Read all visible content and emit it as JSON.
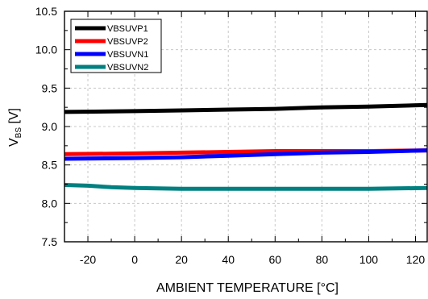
{
  "chart_data": {
    "type": "line",
    "title": "",
    "xlabel": "AMBIENT TEMPERATURE [°C]",
    "ylabel": {
      "main": "V",
      "sub": "BS",
      "unit": " [V]"
    },
    "xlim": [
      -30,
      125
    ],
    "ylim": [
      7.5,
      10.5
    ],
    "x_ticks": [
      -20,
      0,
      20,
      40,
      60,
      80,
      100,
      120
    ],
    "x_tick_labels": [
      "-20",
      "0",
      "20",
      "40",
      "60",
      "80",
      "100",
      "120"
    ],
    "y_ticks": [
      7.5,
      8.0,
      8.5,
      9.0,
      9.5,
      10.0,
      10.5
    ],
    "y_tick_labels": [
      "7.5",
      "8.0",
      "8.5",
      "9.0",
      "9.5",
      "10.0",
      "10.5"
    ],
    "grid": true,
    "legend_position": "top-left",
    "series": [
      {
        "name": "VBSUVP1",
        "color": "#000000",
        "x": [
          -30,
          0,
          20,
          40,
          60,
          80,
          100,
          125
        ],
        "y": [
          9.19,
          9.2,
          9.21,
          9.22,
          9.23,
          9.25,
          9.26,
          9.28
        ]
      },
      {
        "name": "VBSUVP2",
        "color": "#ff0000",
        "x": [
          -30,
          0,
          20,
          40,
          60,
          80,
          100,
          125
        ],
        "y": [
          8.64,
          8.65,
          8.66,
          8.67,
          8.68,
          8.68,
          8.68,
          8.69
        ]
      },
      {
        "name": "VBSUVN1",
        "color": "#0000ff",
        "x": [
          -30,
          0,
          20,
          40,
          60,
          80,
          100,
          125
        ],
        "y": [
          8.58,
          8.59,
          8.6,
          8.62,
          8.64,
          8.66,
          8.67,
          8.69
        ]
      },
      {
        "name": "VBSUVN2",
        "color": "#008080",
        "x": [
          -30,
          -20,
          -10,
          0,
          20,
          40,
          60,
          80,
          100,
          125
        ],
        "y": [
          8.24,
          8.23,
          8.21,
          8.2,
          8.19,
          8.19,
          8.19,
          8.19,
          8.19,
          8.2
        ]
      }
    ]
  }
}
